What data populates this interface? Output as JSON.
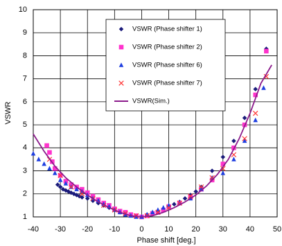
{
  "chart_data": {
    "type": "scatter",
    "x_label": "Phase shift [deg.]",
    "y_label": "VSWR",
    "xlim": [
      -40,
      50
    ],
    "ylim": [
      1,
      10
    ],
    "xticks": [
      -40,
      -30,
      -20,
      -10,
      0,
      10,
      20,
      30,
      40,
      50
    ],
    "yticks": [
      1,
      2,
      3,
      4,
      5,
      6,
      7,
      8,
      9,
      10
    ],
    "grid": true,
    "legend": "top-center",
    "series": [
      {
        "name": "VSWR (Phase shifter 1)",
        "color": "#1a1a7a",
        "marker": "diamond",
        "x": [
          -31,
          -30,
          -29,
          -28,
          -27,
          -26,
          -25,
          -24,
          -23,
          -22,
          -20,
          -18,
          -16,
          -14,
          -12,
          -10,
          -8,
          -6,
          -4,
          -2,
          0,
          2,
          4,
          6,
          8,
          10,
          12,
          14,
          16,
          18,
          20,
          22,
          26,
          30,
          34,
          38,
          42,
          46
        ],
        "values": [
          2.4,
          2.3,
          2.2,
          2.15,
          2.1,
          2.05,
          2.0,
          1.95,
          1.9,
          1.85,
          1.8,
          1.7,
          1.6,
          1.5,
          1.4,
          1.3,
          1.2,
          1.15,
          1.1,
          1.05,
          1.0,
          1.1,
          1.15,
          1.25,
          1.35,
          1.45,
          1.55,
          1.65,
          1.8,
          1.95,
          2.1,
          2.3,
          3.0,
          3.6,
          4.3,
          5.3,
          6.55,
          8.3
        ]
      },
      {
        "name": "VSWR (Phase shifter 2)",
        "color": "#ff33cc",
        "marker": "square",
        "x": [
          -35,
          -34,
          -33,
          -32,
          -30,
          -28,
          -26,
          -24,
          -22,
          -20,
          -18,
          -16,
          -14,
          -12,
          -10,
          -8,
          -6,
          -4,
          -2,
          0,
          2,
          4,
          6,
          8,
          10,
          14,
          18,
          22,
          26,
          30,
          34,
          38,
          42,
          46
        ],
        "values": [
          4.1,
          3.8,
          3.4,
          3.1,
          2.8,
          2.55,
          2.4,
          2.3,
          2.2,
          2.05,
          1.9,
          1.75,
          1.6,
          1.5,
          1.35,
          1.25,
          1.2,
          1.1,
          1.05,
          1.0,
          1.05,
          1.15,
          1.2,
          1.3,
          1.45,
          1.6,
          1.85,
          2.2,
          2.6,
          3.3,
          4.0,
          5.0,
          6.3,
          8.2
        ]
      },
      {
        "name": "VSWR (Phase shifter 6)",
        "color": "#1f3fe0",
        "marker": "triangle",
        "x": [
          -40,
          -38,
          -36,
          -34,
          -32,
          -30,
          -28,
          -26,
          -24,
          -22,
          -20,
          -18,
          -16,
          -14,
          -12,
          -10,
          -8,
          -6,
          -4,
          -2,
          0,
          2,
          4,
          6,
          8,
          10,
          14,
          18,
          22,
          26,
          30,
          34,
          38,
          42,
          45
        ],
        "values": [
          3.75,
          3.5,
          3.3,
          3.1,
          2.9,
          2.6,
          2.45,
          2.3,
          2.2,
          2.1,
          1.95,
          1.8,
          1.7,
          1.55,
          1.45,
          1.3,
          1.2,
          1.1,
          1.05,
          1.0,
          1.0,
          1.1,
          1.2,
          1.3,
          1.4,
          1.5,
          1.6,
          1.8,
          2.2,
          2.7,
          2.9,
          3.5,
          4.3,
          5.2,
          6.6
        ]
      },
      {
        "name": "VSWR (Phase shifter 7)",
        "color": "#ff3333",
        "marker": "cross",
        "x": [
          -34,
          -30,
          -26,
          -22,
          -18,
          -14,
          -10,
          -6,
          -2,
          2,
          6,
          10,
          14,
          18,
          22,
          26,
          30,
          34,
          38,
          42,
          46
        ],
        "values": [
          3.5,
          2.8,
          2.3,
          2.0,
          1.8,
          1.5,
          1.3,
          1.15,
          1.05,
          1.05,
          1.2,
          1.4,
          1.6,
          1.9,
          2.3,
          2.7,
          3.1,
          3.7,
          4.4,
          5.5,
          7.1
        ]
      },
      {
        "name": "VSWR(Sim.)",
        "color": "#8b1a8b",
        "marker": "line",
        "x": [
          -40,
          -36,
          -32,
          -28,
          -24,
          -20,
          -16,
          -12,
          -8,
          -4,
          0,
          4,
          8,
          12,
          16,
          20,
          24,
          28,
          32,
          36,
          40,
          44,
          48
        ],
        "values": [
          4.6,
          3.85,
          3.2,
          2.7,
          2.3,
          1.95,
          1.65,
          1.4,
          1.2,
          1.05,
          1.0,
          1.05,
          1.2,
          1.4,
          1.65,
          1.95,
          2.35,
          2.85,
          3.5,
          4.4,
          5.5,
          6.8,
          7.6
        ]
      }
    ]
  }
}
